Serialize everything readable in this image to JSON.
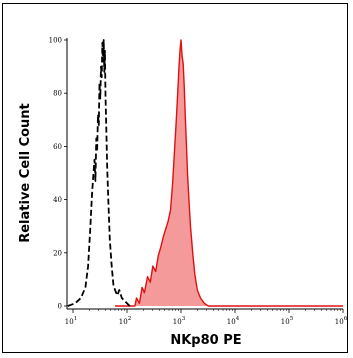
{
  "chart_data": {
    "type": "area",
    "title": "",
    "xlabel": "NKp80 PE",
    "ylabel": "Relative Cell Count",
    "x_scale": "log",
    "xlim": [
      10,
      1000000
    ],
    "ylim": [
      0,
      100
    ],
    "x_ticks": [
      {
        "value": 10,
        "mantissa": "10",
        "exp": "1"
      },
      {
        "value": 100,
        "mantissa": "10",
        "exp": "2"
      },
      {
        "value": 1000,
        "mantissa": "10",
        "exp": "3"
      },
      {
        "value": 10000,
        "mantissa": "10",
        "exp": "4"
      },
      {
        "value": 100000,
        "mantissa": "10",
        "exp": "5"
      },
      {
        "value": 1000000,
        "mantissa": "10",
        "exp": "6"
      }
    ],
    "y_ticks": [
      "0",
      "20",
      "40",
      "60",
      "80",
      "100"
    ],
    "colors": {
      "stained_line": "#e01010",
      "stained_fill": "#f59a9a",
      "control_line": "#000000"
    },
    "series": [
      {
        "style": "dashed-black",
        "x": [
          8,
          11,
          14,
          17,
          19,
          21,
          22.5,
          24,
          25,
          26,
          27,
          28,
          29,
          30,
          31,
          32,
          33,
          34,
          35,
          36,
          37,
          38,
          39,
          40,
          41,
          43,
          45,
          48,
          52,
          56,
          60,
          66,
          72,
          80,
          90,
          100,
          112
        ],
        "y": [
          0,
          1,
          3,
          7,
          15,
          30,
          42,
          50,
          55,
          47,
          63,
          58,
          72,
          68,
          84,
          78,
          90,
          86,
          99,
          92,
          100,
          88,
          96,
          79,
          70,
          52,
          40,
          25,
          15,
          8,
          6,
          4,
          6,
          3,
          2,
          1,
          0
        ]
      },
      {
        "style": "filled-red",
        "x": [
          60,
          100,
          140,
          150,
          170,
          190,
          210,
          240,
          270,
          300,
          340,
          380,
          420,
          470,
          520,
          580,
          640,
          700,
          760,
          820,
          870,
          920,
          960,
          1000,
          1050,
          1100,
          1150,
          1200,
          1260,
          1320,
          1400,
          1500,
          1650,
          1800,
          2000,
          2300,
          2700,
          3200,
          4000,
          10000,
          100000,
          1000000
        ],
        "y": [
          0,
          0,
          0,
          3,
          1,
          7,
          5,
          11,
          9,
          15,
          13,
          19,
          22,
          26,
          29,
          32,
          36,
          46,
          59,
          70,
          80,
          90,
          96,
          100,
          94,
          91,
          82,
          71,
          61,
          50,
          40,
          30,
          20,
          12,
          6,
          3,
          1,
          0,
          0,
          0,
          0,
          0
        ]
      }
    ]
  }
}
